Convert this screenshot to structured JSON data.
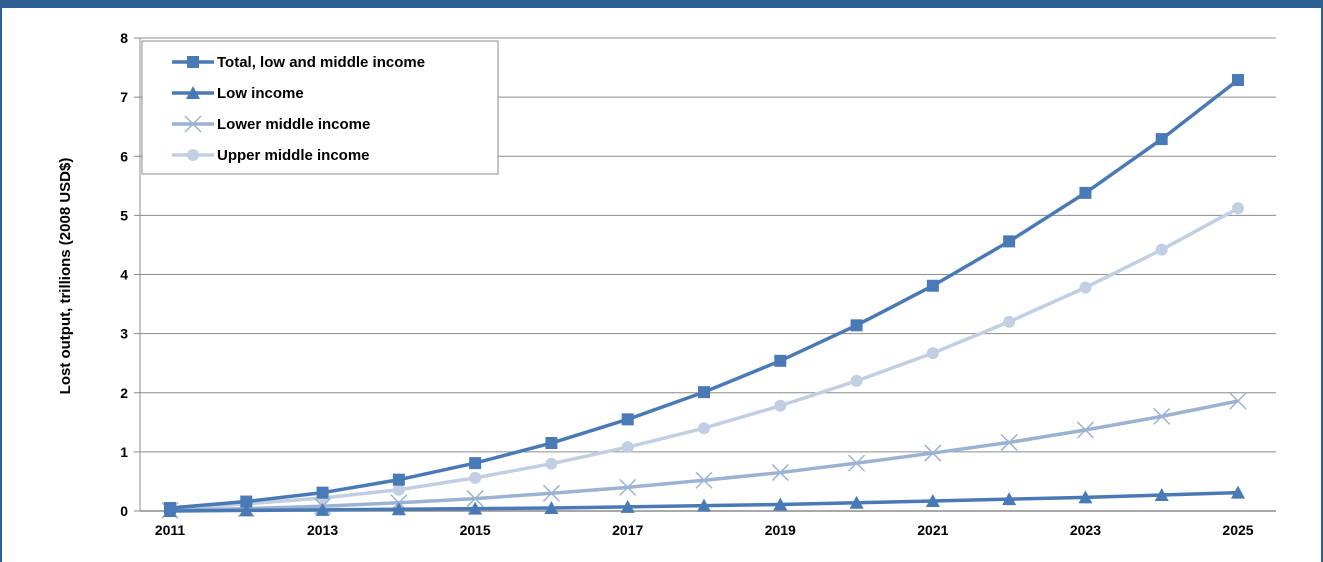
{
  "chart_data": {
    "type": "line",
    "title": "",
    "xlabel": "",
    "ylabel": "Lost output, trillions (2008 USD$)",
    "x": [
      2011,
      2012,
      2013,
      2014,
      2015,
      2016,
      2017,
      2018,
      2019,
      2020,
      2021,
      2022,
      2023,
      2024,
      2025
    ],
    "x_tick_labels": [
      "2011",
      "2013",
      "2015",
      "2017",
      "2019",
      "2021",
      "2023",
      "2025"
    ],
    "ylim": [
      0,
      8
    ],
    "y_ticks": [
      0,
      1,
      2,
      3,
      4,
      5,
      6,
      7,
      8
    ],
    "grid": true,
    "legend_position": "top-left",
    "series": [
      {
        "name": "Total, low and middle income",
        "color": "#4a7ab5",
        "marker": "square",
        "values": [
          0.05,
          0.16,
          0.31,
          0.53,
          0.81,
          1.15,
          1.55,
          2.01,
          2.54,
          3.14,
          3.81,
          4.56,
          5.38,
          6.29,
          7.29
        ]
      },
      {
        "name": "Low income",
        "color": "#4a7ab5",
        "marker": "triangle",
        "values": [
          0.0,
          0.01,
          0.02,
          0.03,
          0.04,
          0.05,
          0.07,
          0.09,
          0.11,
          0.14,
          0.17,
          0.2,
          0.23,
          0.27,
          0.31
        ]
      },
      {
        "name": "Lower middle income",
        "color": "#9cb2d3",
        "marker": "x",
        "values": [
          0.01,
          0.04,
          0.08,
          0.14,
          0.21,
          0.3,
          0.4,
          0.52,
          0.65,
          0.81,
          0.98,
          1.16,
          1.37,
          1.6,
          1.86
        ]
      },
      {
        "name": "Upper middle income",
        "color": "#c2cfe3",
        "marker": "circle",
        "values": [
          0.04,
          0.12,
          0.22,
          0.36,
          0.56,
          0.8,
          1.08,
          1.4,
          1.78,
          2.2,
          2.67,
          3.2,
          3.78,
          4.42,
          5.12
        ]
      }
    ]
  }
}
